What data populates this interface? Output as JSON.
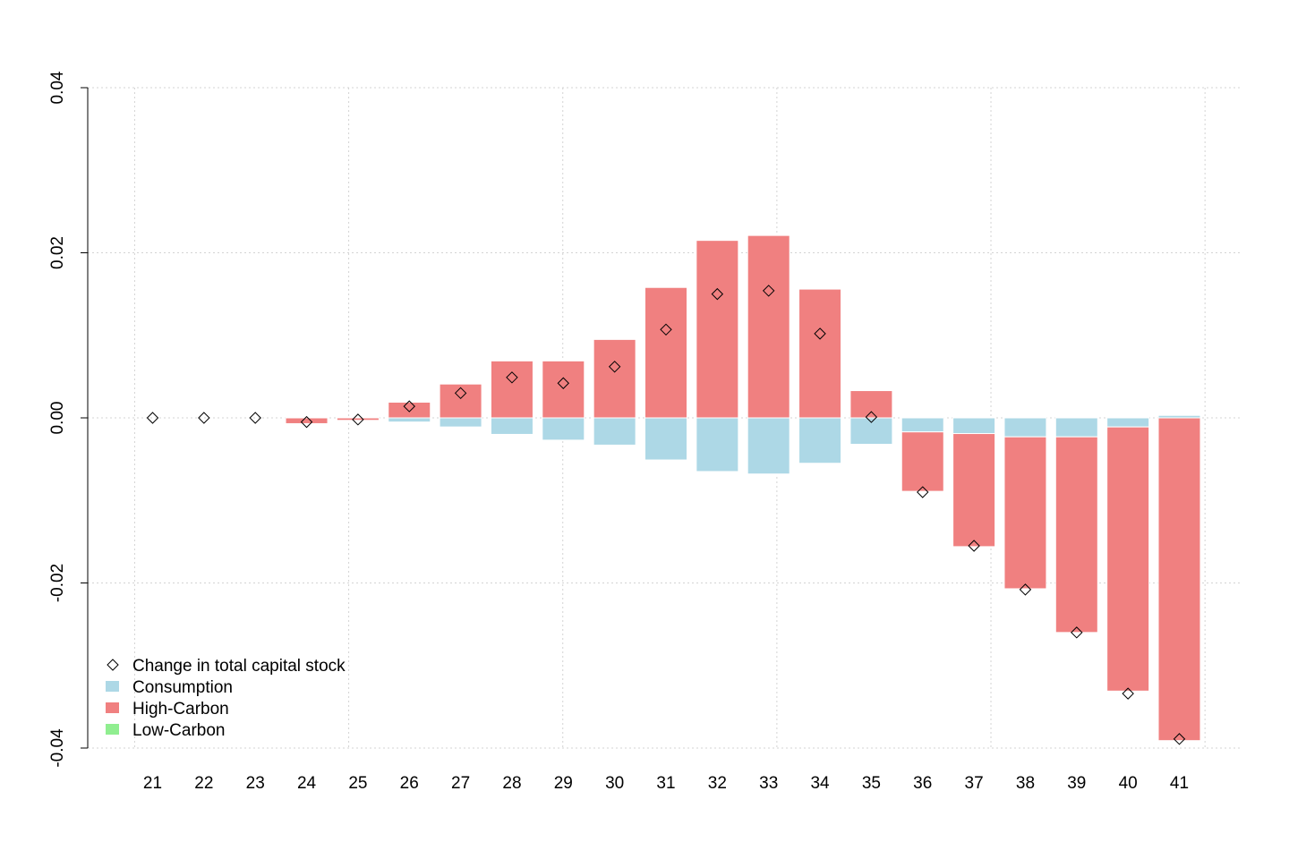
{
  "chart_data": {
    "type": "bar",
    "categories": [
      "21",
      "22",
      "23",
      "24",
      "25",
      "26",
      "27",
      "28",
      "29",
      "30",
      "31",
      "32",
      "33",
      "34",
      "35",
      "36",
      "37",
      "38",
      "39",
      "40",
      "41"
    ],
    "series": [
      {
        "name": "Consumption",
        "color": "#add8e6",
        "values": [
          0,
          0,
          0,
          0,
          0,
          -0.0005,
          -0.0011,
          -0.002,
          -0.0027,
          -0.0033,
          -0.0051,
          -0.0065,
          -0.0068,
          -0.0055,
          -0.0032,
          -0.0017,
          -0.0019,
          -0.0023,
          -0.0023,
          -0.0011,
          0.0003
        ]
      },
      {
        "name": "High-Carbon",
        "color": "#f08080",
        "values": [
          0,
          0,
          0,
          -0.0007,
          -0.0003,
          0.0019,
          0.0041,
          0.0069,
          0.0069,
          0.0095,
          0.0158,
          0.0215,
          0.0221,
          0.0156,
          0.0033,
          -0.0072,
          -0.0137,
          -0.0184,
          -0.0237,
          -0.032,
          -0.0391
        ]
      },
      {
        "name": "Low-Carbon",
        "color": "#90ee90",
        "values": [
          0,
          0,
          0,
          0,
          0,
          0,
          0,
          0,
          0,
          0,
          0,
          0,
          0,
          0,
          0,
          0,
          0,
          0,
          0,
          0,
          0
        ]
      }
    ],
    "points": {
      "name": "Change in total capital stock",
      "values": [
        0,
        0,
        0,
        -0.0005,
        -0.0002,
        0.0014,
        0.003,
        0.0049,
        0.0042,
        0.0062,
        0.0107,
        0.015,
        0.0154,
        0.0102,
        0.0001,
        -0.009,
        -0.0155,
        -0.0208,
        -0.026,
        -0.0334,
        -0.0389
      ]
    },
    "y_ticks": [
      {
        "value": 0.04,
        "label": "0.04"
      },
      {
        "value": 0.02,
        "label": "0.02"
      },
      {
        "value": 0.0,
        "label": "0.00"
      },
      {
        "value": -0.02,
        "label": "-0.02"
      },
      {
        "value": -0.04,
        "label": "-0.04"
      }
    ],
    "ylim": [
      -0.04,
      0.04
    ],
    "grid": true,
    "legend_position": "bottom-left",
    "legend_items": [
      {
        "label": "Change in total capital stock",
        "symbol": "diamond"
      },
      {
        "label": "Consumption",
        "symbol": "box",
        "color": "#add8e6"
      },
      {
        "label": "High-Carbon",
        "symbol": "box",
        "color": "#f08080"
      },
      {
        "label": "Low-Carbon",
        "symbol": "box",
        "color": "#90ee90"
      }
    ]
  }
}
